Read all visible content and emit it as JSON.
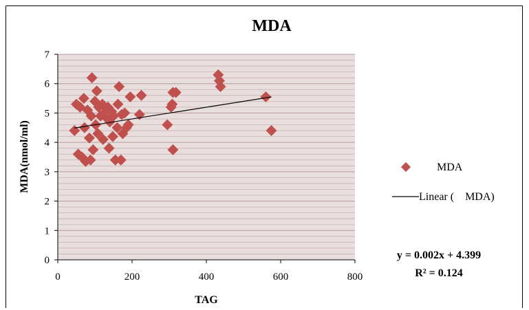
{
  "chart_data": {
    "type": "scatter",
    "title": "MDA",
    "xlabel": "TAG",
    "ylabel": "MDA(nmol/ml)",
    "xlim": [
      0,
      800
    ],
    "ylim": [
      0,
      7
    ],
    "x_ticks": [
      "0",
      "200",
      "400",
      "600",
      "800"
    ],
    "y_ticks": [
      "0",
      "1",
      "2",
      "3",
      "4",
      "5",
      "6",
      "7"
    ],
    "grid": "horizontal",
    "legend_position": "right",
    "series": [
      {
        "name": "MDA",
        "color": "#c0504d",
        "marker": "diamond",
        "points": [
          [
            45,
            4.4
          ],
          [
            50,
            5.3
          ],
          [
            55,
            3.6
          ],
          [
            60,
            5.2
          ],
          [
            65,
            3.5
          ],
          [
            70,
            5.5
          ],
          [
            72,
            4.5
          ],
          [
            75,
            3.35
          ],
          [
            80,
            5.1
          ],
          [
            85,
            4.15
          ],
          [
            88,
            3.4
          ],
          [
            90,
            4.9
          ],
          [
            92,
            6.2
          ],
          [
            95,
            3.75
          ],
          [
            100,
            5.4
          ],
          [
            102,
            4.6
          ],
          [
            105,
            5.75
          ],
          [
            108,
            4.3
          ],
          [
            110,
            5.2
          ],
          [
            115,
            4.9
          ],
          [
            120,
            5.3
          ],
          [
            122,
            4.1
          ],
          [
            125,
            5.0
          ],
          [
            130,
            4.85
          ],
          [
            135,
            5.2
          ],
          [
            138,
            3.8
          ],
          [
            140,
            4.7
          ],
          [
            145,
            5.05
          ],
          [
            148,
            4.2
          ],
          [
            150,
            4.9
          ],
          [
            155,
            3.4
          ],
          [
            160,
            4.5
          ],
          [
            162,
            5.3
          ],
          [
            165,
            5.9
          ],
          [
            170,
            3.4
          ],
          [
            172,
            4.95
          ],
          [
            175,
            4.3
          ],
          [
            180,
            5.0
          ],
          [
            185,
            4.5
          ],
          [
            190,
            4.6
          ],
          [
            195,
            5.55
          ],
          [
            220,
            4.95
          ],
          [
            225,
            5.6
          ],
          [
            295,
            4.6
          ],
          [
            305,
            5.2
          ],
          [
            308,
            5.3
          ],
          [
            310,
            5.7
          ],
          [
            310,
            3.75
          ],
          [
            318,
            5.7
          ],
          [
            432,
            6.3
          ],
          [
            435,
            6.1
          ],
          [
            438,
            5.9
          ],
          [
            560,
            5.55
          ],
          [
            575,
            4.4
          ]
        ]
      },
      {
        "name": "Linear (    MDA)",
        "type": "line",
        "color": "#000000",
        "x_range": [
          45,
          575
        ],
        "slope": 0.002,
        "intercept": 4.399
      }
    ],
    "annotations": {
      "equation": "y = 0.002x + 4.399",
      "r_squared": "R² = 0.124"
    }
  },
  "legend": {
    "series_label": "MDA",
    "trend_label": "Linear (    MDA)"
  }
}
